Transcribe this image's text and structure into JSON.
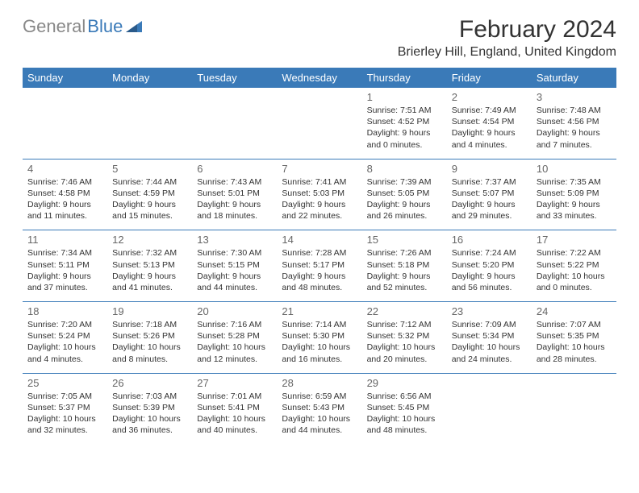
{
  "logo": {
    "gray": "General",
    "blue": "Blue"
  },
  "title": "February 2024",
  "location": "Brierley Hill, England, United Kingdom",
  "colors": {
    "header_bg": "#3a7ab8",
    "header_text": "#ffffff",
    "border": "#3a7ab8",
    "body_text": "#333333",
    "daynum": "#666666",
    "logo_gray": "#888888",
    "logo_blue": "#3a7ab8"
  },
  "day_headers": [
    "Sunday",
    "Monday",
    "Tuesday",
    "Wednesday",
    "Thursday",
    "Friday",
    "Saturday"
  ],
  "weeks": [
    [
      null,
      null,
      null,
      null,
      {
        "n": "1",
        "sr": "7:51 AM",
        "ss": "4:52 PM",
        "dl": "9 hours and 0 minutes."
      },
      {
        "n": "2",
        "sr": "7:49 AM",
        "ss": "4:54 PM",
        "dl": "9 hours and 4 minutes."
      },
      {
        "n": "3",
        "sr": "7:48 AM",
        "ss": "4:56 PM",
        "dl": "9 hours and 7 minutes."
      }
    ],
    [
      {
        "n": "4",
        "sr": "7:46 AM",
        "ss": "4:58 PM",
        "dl": "9 hours and 11 minutes."
      },
      {
        "n": "5",
        "sr": "7:44 AM",
        "ss": "4:59 PM",
        "dl": "9 hours and 15 minutes."
      },
      {
        "n": "6",
        "sr": "7:43 AM",
        "ss": "5:01 PM",
        "dl": "9 hours and 18 minutes."
      },
      {
        "n": "7",
        "sr": "7:41 AM",
        "ss": "5:03 PM",
        "dl": "9 hours and 22 minutes."
      },
      {
        "n": "8",
        "sr": "7:39 AM",
        "ss": "5:05 PM",
        "dl": "9 hours and 26 minutes."
      },
      {
        "n": "9",
        "sr": "7:37 AM",
        "ss": "5:07 PM",
        "dl": "9 hours and 29 minutes."
      },
      {
        "n": "10",
        "sr": "7:35 AM",
        "ss": "5:09 PM",
        "dl": "9 hours and 33 minutes."
      }
    ],
    [
      {
        "n": "11",
        "sr": "7:34 AM",
        "ss": "5:11 PM",
        "dl": "9 hours and 37 minutes."
      },
      {
        "n": "12",
        "sr": "7:32 AM",
        "ss": "5:13 PM",
        "dl": "9 hours and 41 minutes."
      },
      {
        "n": "13",
        "sr": "7:30 AM",
        "ss": "5:15 PM",
        "dl": "9 hours and 44 minutes."
      },
      {
        "n": "14",
        "sr": "7:28 AM",
        "ss": "5:17 PM",
        "dl": "9 hours and 48 minutes."
      },
      {
        "n": "15",
        "sr": "7:26 AM",
        "ss": "5:18 PM",
        "dl": "9 hours and 52 minutes."
      },
      {
        "n": "16",
        "sr": "7:24 AM",
        "ss": "5:20 PM",
        "dl": "9 hours and 56 minutes."
      },
      {
        "n": "17",
        "sr": "7:22 AM",
        "ss": "5:22 PM",
        "dl": "10 hours and 0 minutes."
      }
    ],
    [
      {
        "n": "18",
        "sr": "7:20 AM",
        "ss": "5:24 PM",
        "dl": "10 hours and 4 minutes."
      },
      {
        "n": "19",
        "sr": "7:18 AM",
        "ss": "5:26 PM",
        "dl": "10 hours and 8 minutes."
      },
      {
        "n": "20",
        "sr": "7:16 AM",
        "ss": "5:28 PM",
        "dl": "10 hours and 12 minutes."
      },
      {
        "n": "21",
        "sr": "7:14 AM",
        "ss": "5:30 PM",
        "dl": "10 hours and 16 minutes."
      },
      {
        "n": "22",
        "sr": "7:12 AM",
        "ss": "5:32 PM",
        "dl": "10 hours and 20 minutes."
      },
      {
        "n": "23",
        "sr": "7:09 AM",
        "ss": "5:34 PM",
        "dl": "10 hours and 24 minutes."
      },
      {
        "n": "24",
        "sr": "7:07 AM",
        "ss": "5:35 PM",
        "dl": "10 hours and 28 minutes."
      }
    ],
    [
      {
        "n": "25",
        "sr": "7:05 AM",
        "ss": "5:37 PM",
        "dl": "10 hours and 32 minutes."
      },
      {
        "n": "26",
        "sr": "7:03 AM",
        "ss": "5:39 PM",
        "dl": "10 hours and 36 minutes."
      },
      {
        "n": "27",
        "sr": "7:01 AM",
        "ss": "5:41 PM",
        "dl": "10 hours and 40 minutes."
      },
      {
        "n": "28",
        "sr": "6:59 AM",
        "ss": "5:43 PM",
        "dl": "10 hours and 44 minutes."
      },
      {
        "n": "29",
        "sr": "6:56 AM",
        "ss": "5:45 PM",
        "dl": "10 hours and 48 minutes."
      },
      null,
      null
    ]
  ],
  "labels": {
    "sunrise": "Sunrise: ",
    "sunset": "Sunset: ",
    "daylight": "Daylight: "
  }
}
